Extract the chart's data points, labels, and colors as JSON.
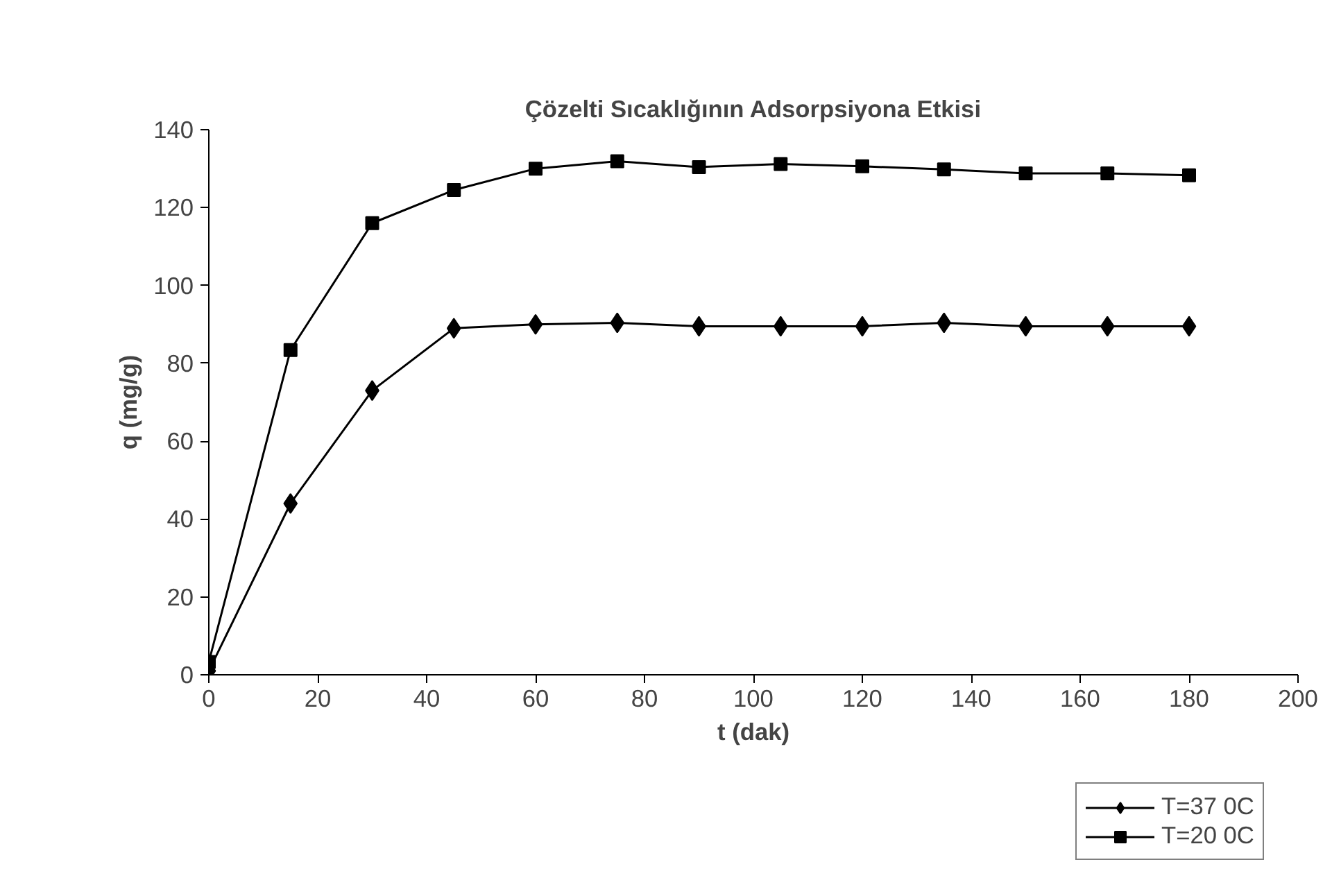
{
  "chart_data": {
    "type": "line",
    "title": "Çözelti Sıcaklığının Adsorpsiyona Etkisi",
    "xlabel": "t (dak)",
    "ylabel": "q (mg/g)",
    "x": [
      0,
      15,
      30,
      45,
      60,
      75,
      90,
      105,
      120,
      135,
      150,
      165,
      180
    ],
    "series": [
      {
        "name": "T=37 0C",
        "color": "#000000",
        "marker": "diamond",
        "values": [
          1,
          44,
          73,
          89,
          90,
          90.4,
          89.5,
          89.5,
          89.5,
          90.4,
          89.5,
          89.5,
          89.5
        ]
      },
      {
        "name": "T=20 0C",
        "color": "#000000",
        "marker": "square",
        "values": [
          3.3,
          83.4,
          116,
          124.5,
          130,
          131.9,
          130.4,
          131.2,
          130.6,
          129.8,
          128.8,
          128.8,
          128.3
        ]
      }
    ],
    "xlim": [
      0,
      200
    ],
    "xticks": [
      0,
      20,
      40,
      60,
      80,
      100,
      120,
      140,
      160,
      180,
      200
    ],
    "ylim": [
      0,
      140
    ],
    "yticks": [
      0,
      20,
      40,
      60,
      80,
      100,
      120,
      140
    ],
    "grid": false,
    "legend": "bottom right",
    "line_style": "solid"
  }
}
